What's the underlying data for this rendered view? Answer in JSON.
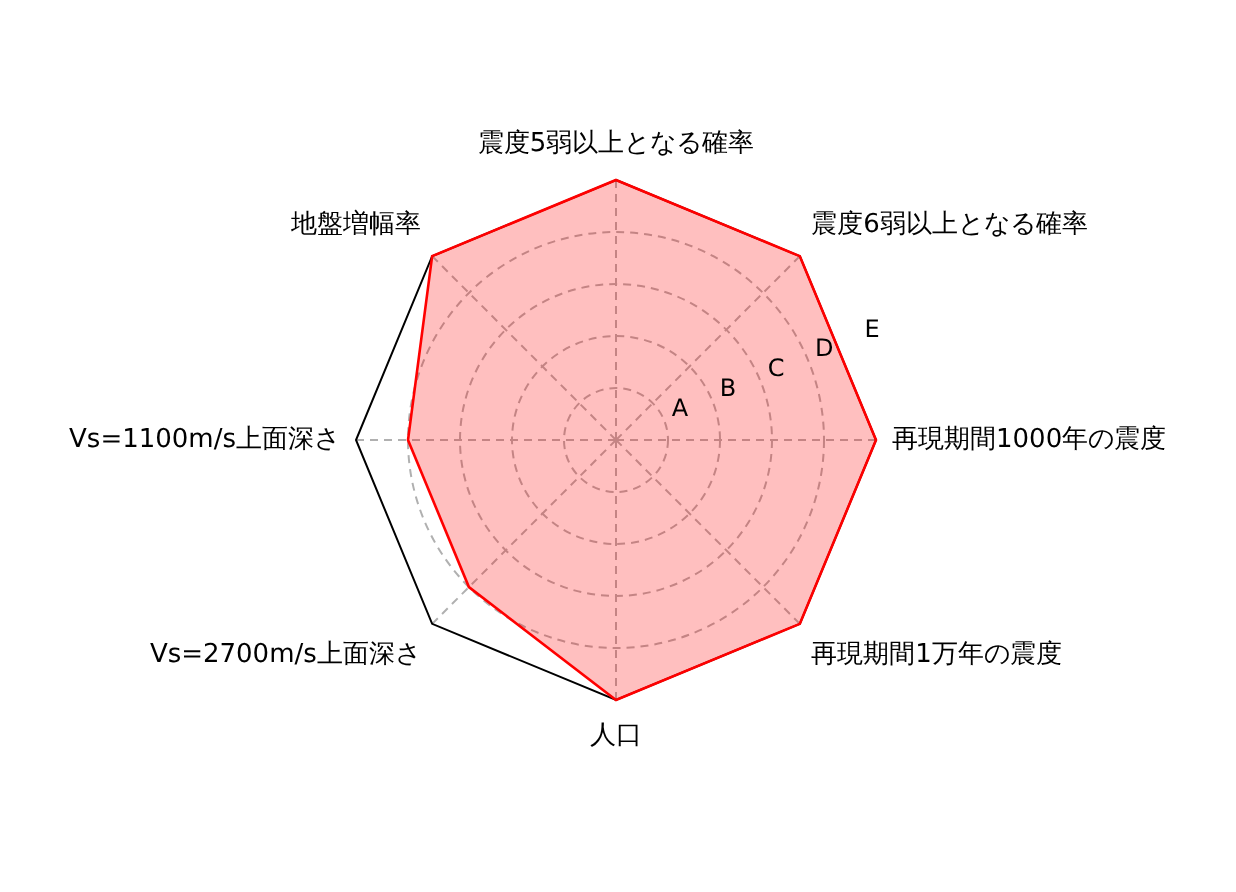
{
  "chart_data": {
    "type": "radar",
    "categories": [
      "震度5弱以上となる確率",
      "震度6弱以上となる確率",
      "再現期間1000年の震度",
      "再現期間1万年の震度",
      "人口",
      "Vs=2700m/s上面深さ",
      "Vs=1100m/s上面深さ",
      "地盤増幅率"
    ],
    "series": [
      {
        "color": "#ff0000",
        "values": [
          5,
          5,
          5,
          5,
          5,
          4,
          4,
          5
        ]
      }
    ],
    "ylim": [
      0,
      5
    ],
    "yticks": [
      {
        "value": 1,
        "label": "A"
      },
      {
        "value": 2,
        "label": "B"
      },
      {
        "value": 3,
        "label": "C"
      },
      {
        "value": 4,
        "label": "D"
      },
      {
        "value": 5,
        "label": "E"
      }
    ],
    "grid": true
  }
}
